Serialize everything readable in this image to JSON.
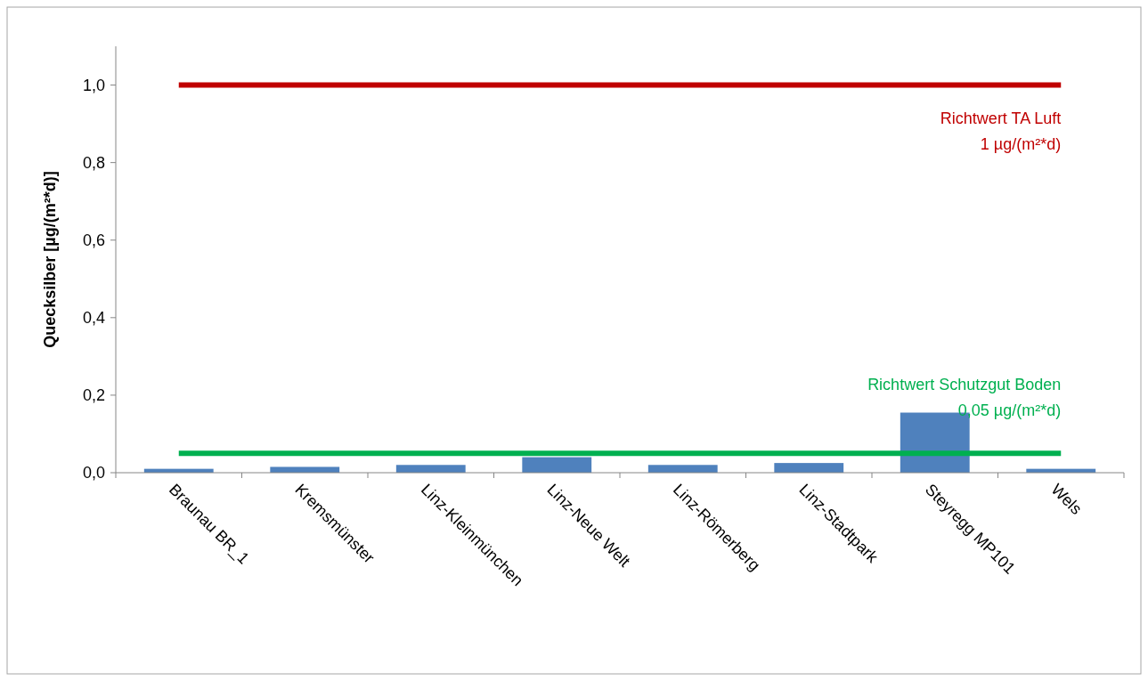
{
  "chart_data": {
    "type": "bar",
    "ylabel": "Quecksilber [µg/(m²*d)]",
    "categories": [
      "Braunau BR_1",
      "Kremsmünster",
      "Linz-Kleinmünchen",
      "Linz-Neue Welt",
      "Linz-Römerberg",
      "Linz-Stadtpark",
      "Steyregg MP101",
      "Wels"
    ],
    "values": [
      0.01,
      0.015,
      0.02,
      0.04,
      0.02,
      0.025,
      0.155,
      0.01
    ],
    "color": "#4f81bd",
    "ylim": [
      0,
      1.1
    ],
    "yticks": [
      {
        "value": 0,
        "label": "0,0"
      },
      {
        "value": 0.2,
        "label": "0,2"
      },
      {
        "value": 0.4,
        "label": "0,4"
      },
      {
        "value": 0.6,
        "label": "0,6"
      },
      {
        "value": 0.8,
        "label": "0,8"
      },
      {
        "value": 1,
        "label": "1,0"
      }
    ],
    "grid": false,
    "ref_lines": [
      {
        "axis": "y",
        "value": 1,
        "label": "Richtwert TA Luft\n1 µg/(m²*d)",
        "color": "#c00000"
      },
      {
        "axis": "y",
        "value": 0.05,
        "label": "Richtwert Schutzgut Boden\n0,05 µg/(m²*d)",
        "color": "#00b050"
      }
    ]
  }
}
